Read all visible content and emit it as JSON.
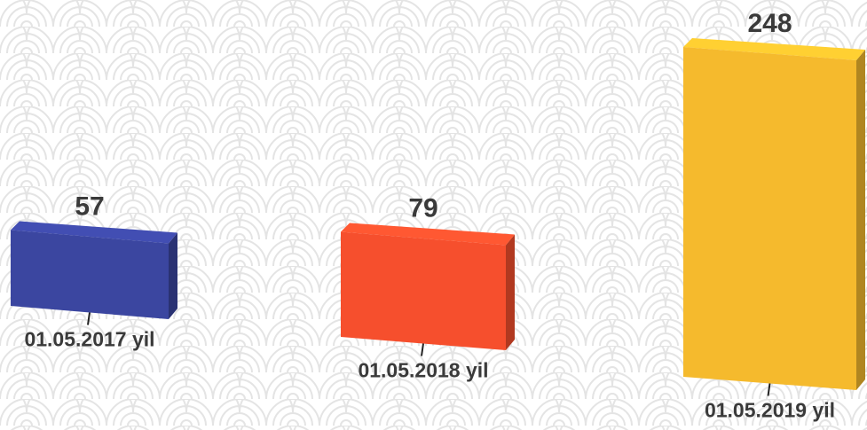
{
  "chart_data": {
    "type": "bar",
    "categories": [
      "01.05.2017 yil",
      "01.05.2018 yil",
      "01.05.2019 yil"
    ],
    "values": [
      57,
      79,
      248
    ],
    "colors": [
      "#3b46a0",
      "#f64f2d",
      "#f5ba2d"
    ]
  }
}
